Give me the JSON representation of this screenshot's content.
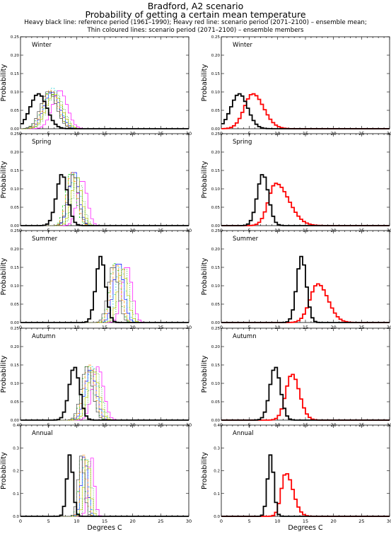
{
  "header": {
    "title_line1": "Bradford, A2 scenario",
    "title_line2": "Probability of getting a certain mean temperature",
    "subtitle_line1": "Heavy black line: reference period (1961–1990); Heavy red line: scenario period (2071–2100) – ensemble mean;",
    "subtitle_line2": "Thin coloured lines: scenario period (2071–2100) – ensemble members"
  },
  "colors": {
    "reference": "#000000",
    "ensemble_mean": "#ff0000",
    "members": [
      "#ff00ff",
      "#00cc00",
      "#0000ff",
      "#00cccc",
      "#cccc00",
      "#ff8800",
      "#008800",
      "#444444"
    ]
  },
  "chart_data": {
    "type": "line",
    "step": true,
    "ylabel": "Probability",
    "xlabel": "Degrees C",
    "xlim": [
      0,
      30
    ],
    "xticks": [
      "0",
      "5",
      "10",
      "15",
      "20",
      "25",
      "30"
    ],
    "grid": false,
    "layout": "5 rows × 2 columns; left column: reference + ensemble members; right column: reference + ensemble mean",
    "panels": [
      {
        "season": "Winter",
        "ylim": [
          0,
          0.25
        ],
        "yticks": [
          "0.00",
          "0.05",
          "0.10",
          "0.15",
          "0.20",
          "0.25"
        ],
        "reference": {
          "mean": 3.2,
          "sd": 1.5,
          "peak": 0.095
        },
        "ensemble_mean": {
          "mean": 5.6,
          "sd": 1.5,
          "peak": 0.095,
          "skew": 0.3
        },
        "members": [
          {
            "mean": 7.0,
            "sd": 1.3,
            "peak": 0.105
          },
          {
            "mean": 5.2,
            "sd": 1.4,
            "peak": 0.1
          },
          {
            "mean": 5.6,
            "sd": 1.4,
            "peak": 0.1
          },
          {
            "mean": 5.8,
            "sd": 1.3,
            "peak": 0.11
          },
          {
            "mean": 6.0,
            "sd": 1.4,
            "peak": 0.095
          },
          {
            "mean": 5.4,
            "sd": 1.3,
            "peak": 0.105
          },
          {
            "mean": 6.2,
            "sd": 1.4,
            "peak": 0.098
          },
          {
            "mean": 5.0,
            "sd": 1.4,
            "peak": 0.102
          }
        ]
      },
      {
        "season": "Spring",
        "ylim": [
          0,
          0.25
        ],
        "yticks": [
          "0.00",
          "0.05",
          "0.10",
          "0.15",
          "0.20",
          "0.25"
        ],
        "reference": {
          "mean": 7.4,
          "sd": 1.0,
          "peak": 0.14
        },
        "ensemble_mean": {
          "mean": 9.7,
          "sd": 1.3,
          "peak": 0.115,
          "skew": 0.8
        },
        "members": [
          {
            "mean": 11.0,
            "sd": 0.9,
            "peak": 0.125
          },
          {
            "mean": 9.0,
            "sd": 0.9,
            "peak": 0.145
          },
          {
            "mean": 9.5,
            "sd": 0.9,
            "peak": 0.15
          },
          {
            "mean": 9.8,
            "sd": 0.9,
            "peak": 0.14
          },
          {
            "mean": 10.0,
            "sd": 0.9,
            "peak": 0.135
          },
          {
            "mean": 9.2,
            "sd": 0.9,
            "peak": 0.145
          },
          {
            "mean": 10.2,
            "sd": 0.9,
            "peak": 0.13
          },
          {
            "mean": 9.4,
            "sd": 0.9,
            "peak": 0.14
          }
        ]
      },
      {
        "season": "Summer",
        "ylim": [
          0,
          0.25
        ],
        "yticks": [
          "0.00",
          "0.05",
          "0.10",
          "0.15",
          "0.20",
          "0.25"
        ],
        "reference": {
          "mean": 14.3,
          "sd": 0.85,
          "peak": 0.18
        },
        "ensemble_mean": {
          "mean": 17.2,
          "sd": 1.4,
          "peak": 0.105,
          "skew": 0.3
        },
        "members": [
          {
            "mean": 19.0,
            "sd": 0.9,
            "peak": 0.155
          },
          {
            "mean": 16.8,
            "sd": 0.9,
            "peak": 0.16
          },
          {
            "mean": 17.5,
            "sd": 0.9,
            "peak": 0.165
          },
          {
            "mean": 17.8,
            "sd": 0.9,
            "peak": 0.15
          },
          {
            "mean": 18.2,
            "sd": 0.9,
            "peak": 0.145
          },
          {
            "mean": 17.0,
            "sd": 0.9,
            "peak": 0.16
          },
          {
            "mean": 18.5,
            "sd": 0.9,
            "peak": 0.15
          },
          {
            "mean": 16.5,
            "sd": 0.9,
            "peak": 0.155
          }
        ]
      },
      {
        "season": "Autumn",
        "ylim": [
          0,
          0.25
        ],
        "yticks": [
          "0.00",
          "0.05",
          "0.10",
          "0.15",
          "0.20",
          "0.25"
        ],
        "reference": {
          "mean": 9.6,
          "sd": 0.95,
          "peak": 0.145
        },
        "ensemble_mean": {
          "mean": 12.6,
          "sd": 1.1,
          "peak": 0.125,
          "skew": 0.2
        },
        "members": [
          {
            "mean": 13.8,
            "sd": 1.0,
            "peak": 0.145
          },
          {
            "mean": 12.0,
            "sd": 1.0,
            "peak": 0.15
          },
          {
            "mean": 12.5,
            "sd": 1.0,
            "peak": 0.14
          },
          {
            "mean": 12.8,
            "sd": 1.0,
            "peak": 0.145
          },
          {
            "mean": 13.0,
            "sd": 1.0,
            "peak": 0.135
          },
          {
            "mean": 12.3,
            "sd": 1.0,
            "peak": 0.15
          },
          {
            "mean": 13.3,
            "sd": 1.0,
            "peak": 0.14
          },
          {
            "mean": 11.8,
            "sd": 1.0,
            "peak": 0.145
          }
        ]
      },
      {
        "season": "Annual",
        "ylim": [
          0,
          0.4
        ],
        "yticks": [
          "0.0",
          "0.1",
          "0.2",
          "0.3",
          "0.4"
        ],
        "reference": {
          "mean": 8.8,
          "sd": 0.55,
          "peak": 0.27
        },
        "ensemble_mean": {
          "mean": 11.5,
          "sd": 0.8,
          "peak": 0.19,
          "skew": 0.6
        },
        "members": [
          {
            "mean": 12.6,
            "sd": 0.55,
            "peak": 0.265
          },
          {
            "mean": 11.0,
            "sd": 0.55,
            "peak": 0.275
          },
          {
            "mean": 11.4,
            "sd": 0.55,
            "peak": 0.27
          },
          {
            "mean": 11.6,
            "sd": 0.55,
            "peak": 0.26
          },
          {
            "mean": 11.9,
            "sd": 0.55,
            "peak": 0.255
          },
          {
            "mean": 11.2,
            "sd": 0.55,
            "peak": 0.27
          },
          {
            "mean": 12.1,
            "sd": 0.55,
            "peak": 0.25
          },
          {
            "mean": 10.8,
            "sd": 0.55,
            "peak": 0.265
          }
        ]
      }
    ]
  }
}
